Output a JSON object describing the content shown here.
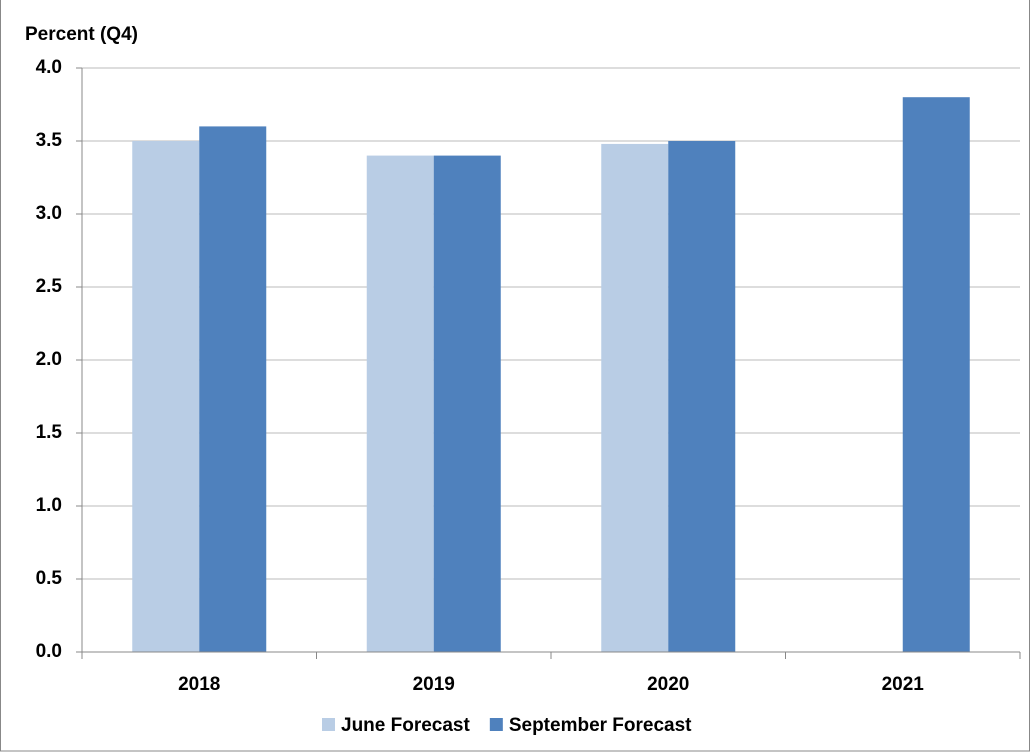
{
  "chart_data": {
    "type": "bar",
    "y_label": "Percent (Q4)",
    "categories": [
      "2018",
      "2019",
      "2020",
      "2021"
    ],
    "series": [
      {
        "name": "June Forecast",
        "color": "#b9cde5",
        "values": [
          3.5,
          3.4,
          3.48,
          null
        ]
      },
      {
        "name": "September Forecast",
        "color": "#4f81bd",
        "values": [
          3.6,
          3.4,
          3.5,
          3.8
        ]
      }
    ],
    "ylim": [
      0,
      4
    ],
    "yticks": [
      {
        "value": 0,
        "label": "0.0"
      },
      0.5,
      {
        "value": 1,
        "label": "1.0"
      },
      1.5,
      {
        "value": 2,
        "label": "2.0"
      },
      2.5,
      {
        "value": 3,
        "label": "3.0"
      },
      3.5,
      {
        "value": 4,
        "label": "4.0"
      }
    ],
    "grid": true,
    "legend": "bottom"
  }
}
